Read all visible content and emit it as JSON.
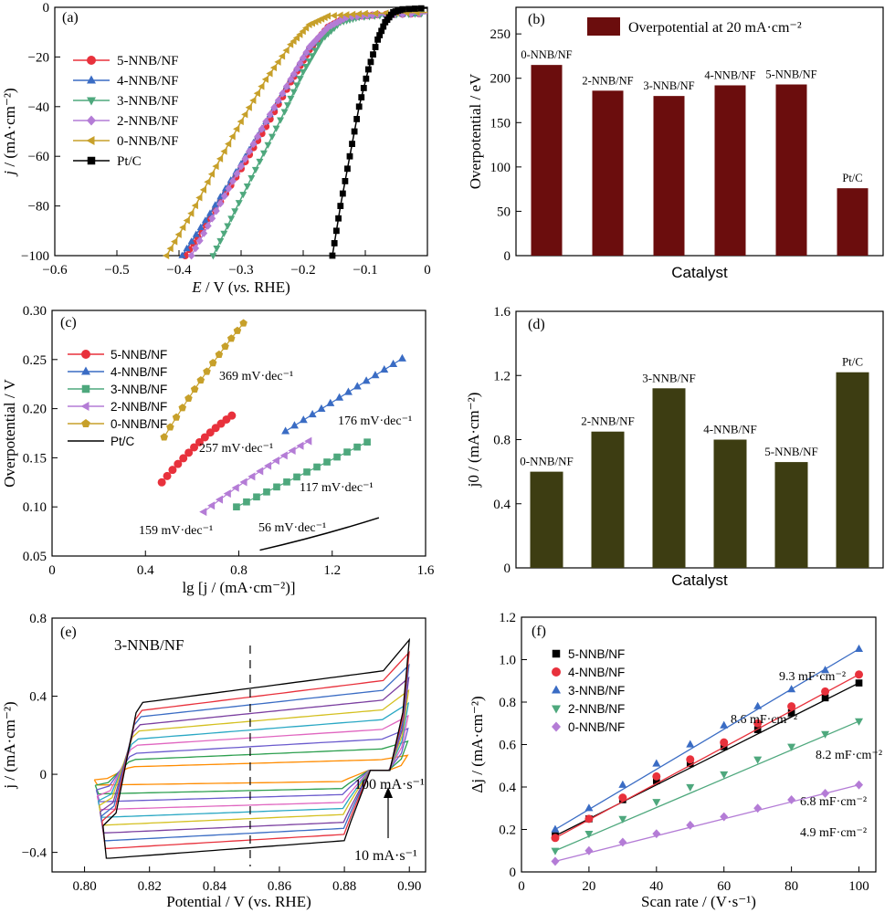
{
  "colors": {
    "red": "#e8313c",
    "blue": "#3a6cc4",
    "green": "#4ea87d",
    "purple": "#b47cd6",
    "gold": "#c7a02a",
    "black": "#000000",
    "bar_b": "#6b0d0d",
    "bar_d": "#3d3d12"
  },
  "chart_data": [
    {
      "panel": "(a)",
      "type": "line",
      "xlabel_italic": "E",
      "xlabel_rest": " / V (",
      "xlabel_vs": "vs.",
      "xlabel_end": " RHE)",
      "ylabel_italic": "j",
      "ylabel_rest": " / (mA·cm⁻²)",
      "xlim": [
        -0.6,
        0
      ],
      "ylim": [
        -100,
        0
      ],
      "xticks": [
        -0.6,
        -0.5,
        -0.4,
        -0.3,
        -0.2,
        -0.1,
        0
      ],
      "xtick_labels": [
        "−0.6",
        "−0.5",
        "−0.4",
        "−0.3",
        "−0.2",
        "−0.1",
        "0"
      ],
      "yticks": [
        -100,
        -80,
        -60,
        -40,
        -20,
        0
      ],
      "ytick_labels": [
        "−100",
        "−80",
        "−60",
        "−40",
        "−20",
        "0"
      ],
      "series": [
        {
          "name": "5-NNB/NF",
          "color_key": "red",
          "marker": "circle",
          "points": [
            [
              -0.39,
              -100
            ],
            [
              -0.35,
              -85
            ],
            [
              -0.3,
              -65
            ],
            [
              -0.26,
              -48
            ],
            [
              -0.22,
              -30
            ],
            [
              -0.19,
              -17
            ],
            [
              -0.16,
              -8
            ],
            [
              -0.13,
              -4
            ],
            [
              -0.08,
              -3
            ],
            [
              0,
              -2.5
            ]
          ]
        },
        {
          "name": "4-NNB/NF",
          "color_key": "blue",
          "marker": "triangle-up",
          "points": [
            [
              -0.395,
              -100
            ],
            [
              -0.35,
              -83
            ],
            [
              -0.3,
              -63
            ],
            [
              -0.26,
              -46
            ],
            [
              -0.22,
              -29
            ],
            [
              -0.19,
              -16
            ],
            [
              -0.16,
              -8
            ],
            [
              -0.13,
              -4
            ],
            [
              -0.08,
              -3
            ],
            [
              0,
              -2.5
            ]
          ]
        },
        {
          "name": "3-NNB/NF",
          "color_key": "green",
          "marker": "triangle-down",
          "points": [
            [
              -0.345,
              -100
            ],
            [
              -0.31,
              -82
            ],
            [
              -0.27,
              -62
            ],
            [
              -0.23,
              -42
            ],
            [
              -0.2,
              -26
            ],
            [
              -0.17,
              -13
            ],
            [
              -0.14,
              -6
            ],
            [
              -0.11,
              -4
            ],
            [
              -0.06,
              -3
            ],
            [
              0,
              -2.5
            ]
          ]
        },
        {
          "name": "2-NNB/NF",
          "color_key": "purple",
          "marker": "diamond",
          "points": [
            [
              -0.38,
              -100
            ],
            [
              -0.34,
              -82
            ],
            [
              -0.3,
              -64
            ],
            [
              -0.26,
              -46
            ],
            [
              -0.22,
              -29
            ],
            [
              -0.19,
              -16
            ],
            [
              -0.16,
              -8
            ],
            [
              -0.13,
              -4
            ],
            [
              -0.08,
              -3
            ],
            [
              0,
              -2.5
            ]
          ]
        },
        {
          "name": "0-NNB/NF",
          "color_key": "gold",
          "marker": "triangle-left",
          "points": [
            [
              -0.42,
              -100
            ],
            [
              -0.38,
              -83
            ],
            [
              -0.34,
              -64
            ],
            [
              -0.3,
              -46
            ],
            [
              -0.26,
              -29
            ],
            [
              -0.22,
              -15
            ],
            [
              -0.19,
              -7
            ],
            [
              -0.16,
              -3.5
            ],
            [
              -0.1,
              -2.5
            ],
            [
              0,
              -2
            ]
          ]
        },
        {
          "name": "Pt/C",
          "color_key": "black",
          "marker": "square",
          "points": [
            [
              -0.153,
              -100
            ],
            [
              -0.14,
              -80
            ],
            [
              -0.125,
              -60
            ],
            [
              -0.11,
              -40
            ],
            [
              -0.095,
              -25
            ],
            [
              -0.08,
              -13
            ],
            [
              -0.068,
              -6
            ],
            [
              -0.055,
              -2
            ],
            [
              -0.04,
              -0.8
            ],
            [
              0,
              -0.3
            ]
          ]
        }
      ]
    },
    {
      "panel": "(b)",
      "type": "bar",
      "legend": "Overpotential at 20 mA·cm⁻²",
      "xlabel": "Catalyst",
      "ylabel": "Overpotential / eV",
      "categories": [
        "0-NNB/NF",
        "2-NNB/NF",
        "3-NNB/NF",
        "4-NNB/NF",
        "5-NNB/NF",
        "Pt/C"
      ],
      "values": [
        215,
        186,
        180,
        192,
        193,
        76
      ],
      "ylim": [
        0,
        280
      ],
      "yticks": [
        0,
        50,
        100,
        150,
        200,
        250
      ]
    },
    {
      "panel": "(c)",
      "type": "scatter",
      "xlabel": "lg [j / (mA·cm⁻²)]",
      "ylabel": "Overpotential / V",
      "xlim": [
        0,
        1.6
      ],
      "ylim": [
        0.05,
        0.3
      ],
      "xticks": [
        0,
        0.4,
        0.8,
        1.2,
        1.6
      ],
      "xtick_labels": [
        "0",
        "0.4",
        "0.8",
        "1.2",
        "1.6"
      ],
      "yticks": [
        0.05,
        0.1,
        0.15,
        0.2,
        0.25,
        0.3
      ],
      "ytick_labels": [
        "0.05",
        "0.10",
        "0.15",
        "0.20",
        "0.25",
        "0.30"
      ],
      "series": [
        {
          "name": "5-NNB/NF",
          "color_key": "red",
          "marker": "circle",
          "x_range": [
            0.47,
            0.77
          ],
          "y_range": [
            0.125,
            0.193
          ],
          "n": 14,
          "curve": 0.25,
          "slope_label": "257 mV·dec⁻¹"
        },
        {
          "name": "4-NNB/NF",
          "color_key": "blue",
          "marker": "triangle-up",
          "x_range": [
            1.0,
            1.5
          ],
          "y_range": [
            0.177,
            0.251
          ],
          "n": 14,
          "curve": 0.0,
          "slope_label": "176 mV·dec⁻¹"
        },
        {
          "name": "3-NNB/NF",
          "color_key": "green",
          "marker": "square",
          "x_range": [
            0.79,
            1.35
          ],
          "y_range": [
            0.1,
            0.166
          ],
          "n": 14,
          "curve": 0.0,
          "slope_label": "117 mV·dec⁻¹"
        },
        {
          "name": "2-NNB/NF",
          "color_key": "purple",
          "marker": "triangle-left",
          "x_range": [
            0.65,
            1.1
          ],
          "y_range": [
            0.095,
            0.167
          ],
          "n": 14,
          "curve": 0.15,
          "slope_label": "159 mV·dec⁻¹"
        },
        {
          "name": "0-NNB/NF",
          "color_key": "gold",
          "marker": "pentagon",
          "x_range": [
            0.48,
            0.82
          ],
          "y_range": [
            0.171,
            0.287
          ],
          "n": 14,
          "curve": 0.15,
          "slope_label": "369 mV·dec⁻¹"
        },
        {
          "name": "Pt/C",
          "color_key": "black",
          "marker": "line",
          "x_range": [
            0.89,
            1.4
          ],
          "y_range": [
            0.056,
            0.089
          ],
          "n": 2,
          "curve": 0.0,
          "slope_label": "56 mV·dec⁻¹"
        }
      ]
    },
    {
      "panel": "(d)",
      "type": "bar",
      "xlabel": "Catalyst",
      "ylabel": "j0 / (mA·cm⁻²)",
      "categories": [
        "0-NNB/NF",
        "2-NNB/NF",
        "3-NNB/NF",
        "4-NNB/NF",
        "5-NNB/NF",
        "Pt/C"
      ],
      "values": [
        0.6,
        0.85,
        1.12,
        0.8,
        0.66,
        1.22
      ],
      "ylim": [
        0,
        1.6
      ],
      "yticks": [
        0,
        0.4,
        0.8,
        1.2,
        1.6
      ],
      "ytick_labels": [
        "0",
        "0.4",
        "0.8",
        "1.2",
        "1.6"
      ]
    },
    {
      "panel": "(e)",
      "type": "line",
      "title": "3-NNB/NF",
      "xlabel": "Potential / V (vs. RHE)",
      "ylabel": "j / (mA·cm⁻²)",
      "xlim": [
        0.79,
        0.905
      ],
      "ylim": [
        -0.5,
        0.8
      ],
      "xticks": [
        0.8,
        0.82,
        0.84,
        0.86,
        0.88,
        0.9
      ],
      "xtick_labels": [
        "0.80",
        "0.82",
        "0.84",
        "0.86",
        "0.88",
        "0.90"
      ],
      "yticks": [
        -0.4,
        0,
        0.4,
        0.8
      ],
      "ytick_labels": [
        "−0.4",
        "0",
        "0.4",
        "0.8"
      ],
      "dashed_x": 0.851,
      "annotation_high": "100 mA·s⁻¹",
      "annotation_low": "10 mA·s⁻¹",
      "curves": [
        {
          "scan_rate": 10,
          "upper": [
            0.035,
            0.075
          ],
          "lower": [
            -0.035,
            -0.055
          ],
          "color": "#ff8c00"
        },
        {
          "scan_rate": 20,
          "upper": [
            0.07,
            0.13
          ],
          "lower": [
            -0.07,
            -0.1
          ],
          "color": "#2d9f4f"
        },
        {
          "scan_rate": 30,
          "upper": [
            0.1,
            0.18
          ],
          "lower": [
            -0.1,
            -0.14
          ],
          "color": "#6a5acd"
        },
        {
          "scan_rate": 40,
          "upper": [
            0.14,
            0.23
          ],
          "lower": [
            -0.14,
            -0.18
          ],
          "color": "#e066c0"
        },
        {
          "scan_rate": 50,
          "upper": [
            0.17,
            0.28
          ],
          "lower": [
            -0.17,
            -0.22
          ],
          "color": "#2aa8c4"
        },
        {
          "scan_rate": 60,
          "upper": [
            0.21,
            0.33
          ],
          "lower": [
            -0.2,
            -0.26
          ],
          "color": "#d4c020"
        },
        {
          "scan_rate": 70,
          "upper": [
            0.24,
            0.38
          ],
          "lower": [
            -0.24,
            -0.3
          ],
          "color": "#7b3fa0"
        },
        {
          "scan_rate": 80,
          "upper": [
            0.28,
            0.43
          ],
          "lower": [
            -0.27,
            -0.34
          ],
          "color": "#3a6cc4"
        },
        {
          "scan_rate": 90,
          "upper": [
            0.31,
            0.48
          ],
          "lower": [
            -0.3,
            -0.38
          ],
          "color": "#e8313c"
        },
        {
          "scan_rate": 100,
          "upper": [
            0.35,
            0.53
          ],
          "lower": [
            -0.33,
            -0.43
          ],
          "color": "#000000"
        }
      ]
    },
    {
      "panel": "(f)",
      "type": "scatter",
      "xlabel": "Scan rate / (V·s⁻¹)",
      "ylabel": "Δj / (mA·cm⁻²)",
      "xlim": [
        0,
        105
      ],
      "ylim": [
        0,
        1.2
      ],
      "xticks": [
        0,
        20,
        40,
        60,
        80,
        100
      ],
      "yticks": [
        0,
        0.2,
        0.4,
        0.6,
        0.8,
        1.0,
        1.2
      ],
      "ytick_labels": [
        "0",
        "0.2",
        "0.4",
        "0.6",
        "0.8",
        "1.0",
        "1.2"
      ],
      "x": [
        10,
        20,
        30,
        40,
        50,
        60,
        70,
        80,
        90,
        100
      ],
      "series": [
        {
          "name": "5-NNB/NF",
          "color_key": "black",
          "marker": "square",
          "values": [
            0.17,
            0.25,
            0.34,
            0.43,
            0.51,
            0.59,
            0.67,
            0.75,
            0.82,
            0.89
          ],
          "cdl_label": "8.2 mF·cm⁻²"
        },
        {
          "name": "4-NNB/NF",
          "color_key": "red",
          "marker": "circle",
          "values": [
            0.16,
            0.25,
            0.35,
            0.45,
            0.53,
            0.61,
            0.7,
            0.78,
            0.85,
            0.93
          ],
          "cdl_label": "8.6 mF·cm⁻²"
        },
        {
          "name": "3-NNB/NF",
          "color_key": "blue",
          "marker": "triangle-up",
          "values": [
            0.2,
            0.3,
            0.41,
            0.51,
            0.6,
            0.69,
            0.78,
            0.86,
            0.95,
            1.05
          ],
          "cdl_label": "9.3 mF·cm⁻²"
        },
        {
          "name": "2-NNB/NF",
          "color_key": "green",
          "marker": "triangle-down",
          "values": [
            0.1,
            0.18,
            0.25,
            0.33,
            0.4,
            0.46,
            0.53,
            0.59,
            0.65,
            0.71
          ],
          "cdl_label": "6.8 mF·cm⁻²"
        },
        {
          "name": "0-NNB/NF",
          "color_key": "purple",
          "marker": "diamond",
          "values": [
            0.05,
            0.1,
            0.14,
            0.18,
            0.22,
            0.26,
            0.3,
            0.34,
            0.37,
            0.41
          ],
          "cdl_label": "4.9 mF·cm⁻²"
        }
      ]
    }
  ]
}
